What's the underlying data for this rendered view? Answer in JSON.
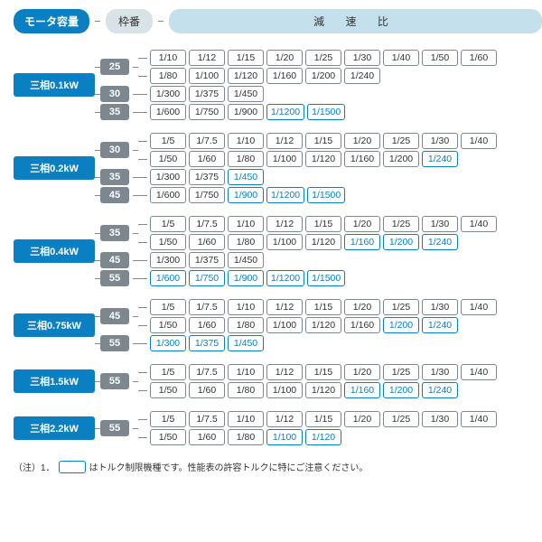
{
  "header": {
    "motor_label": "モータ容量",
    "frame_label": "枠番",
    "ratio_label": "減 速 比"
  },
  "colors": {
    "motor_bg": "#0a7fc2",
    "frame_bg": "#7d8790",
    "ratio_border": "#7d8790",
    "highlight_border": "#0a7fc2",
    "ratio_header_bg": "#c4e0ed",
    "frame_header_bg": "#d9e2e6"
  },
  "groups": [
    {
      "motor": "三相0.1kW",
      "frames": [
        {
          "frame": "25",
          "lines": [
            [
              [
                "1/10",
                0
              ],
              [
                "1/12",
                0
              ],
              [
                "1/15",
                0
              ],
              [
                "1/20",
                0
              ],
              [
                "1/25",
                0
              ],
              [
                "1/30",
                0
              ],
              [
                "1/40",
                0
              ],
              [
                "1/50",
                0
              ],
              [
                "1/60",
                0
              ]
            ],
            [
              [
                "1/80",
                0
              ],
              [
                "1/100",
                0
              ],
              [
                "1/120",
                0
              ],
              [
                "1/160",
                0
              ],
              [
                "1/200",
                0
              ],
              [
                "1/240",
                0
              ]
            ]
          ]
        },
        {
          "frame": "30",
          "lines": [
            [
              [
                "1/300",
                0
              ],
              [
                "1/375",
                0
              ],
              [
                "1/450",
                0
              ]
            ]
          ]
        },
        {
          "frame": "35",
          "lines": [
            [
              [
                "1/600",
                0
              ],
              [
                "1/750",
                0
              ],
              [
                "1/900",
                0
              ],
              [
                "1/1200",
                1
              ],
              [
                "1/1500",
                1
              ]
            ]
          ]
        }
      ]
    },
    {
      "motor": "三相0.2kW",
      "frames": [
        {
          "frame": "30",
          "lines": [
            [
              [
                "1/5",
                0
              ],
              [
                "1/7.5",
                0
              ],
              [
                "1/10",
                0
              ],
              [
                "1/12",
                0
              ],
              [
                "1/15",
                0
              ],
              [
                "1/20",
                0
              ],
              [
                "1/25",
                0
              ],
              [
                "1/30",
                0
              ],
              [
                "1/40",
                0
              ]
            ],
            [
              [
                "1/50",
                0
              ],
              [
                "1/60",
                0
              ],
              [
                "1/80",
                0
              ],
              [
                "1/100",
                0
              ],
              [
                "1/120",
                0
              ],
              [
                "1/160",
                0
              ],
              [
                "1/200",
                0
              ],
              [
                "1/240",
                1
              ]
            ]
          ]
        },
        {
          "frame": "35",
          "lines": [
            [
              [
                "1/300",
                0
              ],
              [
                "1/375",
                0
              ],
              [
                "1/450",
                1
              ]
            ]
          ]
        },
        {
          "frame": "45",
          "lines": [
            [
              [
                "1/600",
                0
              ],
              [
                "1/750",
                0
              ],
              [
                "1/900",
                1
              ],
              [
                "1/1200",
                1
              ],
              [
                "1/1500",
                1
              ]
            ]
          ]
        }
      ]
    },
    {
      "motor": "三相0.4kW",
      "frames": [
        {
          "frame": "35",
          "lines": [
            [
              [
                "1/5",
                0
              ],
              [
                "1/7.5",
                0
              ],
              [
                "1/10",
                0
              ],
              [
                "1/12",
                0
              ],
              [
                "1/15",
                0
              ],
              [
                "1/20",
                0
              ],
              [
                "1/25",
                0
              ],
              [
                "1/30",
                0
              ],
              [
                "1/40",
                0
              ]
            ],
            [
              [
                "1/50",
                0
              ],
              [
                "1/60",
                0
              ],
              [
                "1/80",
                0
              ],
              [
                "1/100",
                0
              ],
              [
                "1/120",
                0
              ],
              [
                "1/160",
                1
              ],
              [
                "1/200",
                1
              ],
              [
                "1/240",
                1
              ]
            ]
          ]
        },
        {
          "frame": "45",
          "lines": [
            [
              [
                "1/300",
                0
              ],
              [
                "1/375",
                0
              ],
              [
                "1/450",
                0
              ]
            ]
          ]
        },
        {
          "frame": "55",
          "lines": [
            [
              [
                "1/600",
                1
              ],
              [
                "1/750",
                1
              ],
              [
                "1/900",
                1
              ],
              [
                "1/1200",
                1
              ],
              [
                "1/1500",
                1
              ]
            ]
          ]
        }
      ]
    },
    {
      "motor": "三相0.75kW",
      "frames": [
        {
          "frame": "45",
          "lines": [
            [
              [
                "1/5",
                0
              ],
              [
                "1/7.5",
                0
              ],
              [
                "1/10",
                0
              ],
              [
                "1/12",
                0
              ],
              [
                "1/15",
                0
              ],
              [
                "1/20",
                0
              ],
              [
                "1/25",
                0
              ],
              [
                "1/30",
                0
              ],
              [
                "1/40",
                0
              ]
            ],
            [
              [
                "1/50",
                0
              ],
              [
                "1/60",
                0
              ],
              [
                "1/80",
                0
              ],
              [
                "1/100",
                0
              ],
              [
                "1/120",
                0
              ],
              [
                "1/160",
                0
              ],
              [
                "1/200",
                1
              ],
              [
                "1/240",
                1
              ]
            ]
          ]
        },
        {
          "frame": "55",
          "lines": [
            [
              [
                "1/300",
                1
              ],
              [
                "1/375",
                1
              ],
              [
                "1/450",
                1
              ]
            ]
          ]
        }
      ]
    },
    {
      "motor": "三相1.5kW",
      "frames": [
        {
          "frame": "55",
          "lines": [
            [
              [
                "1/5",
                0
              ],
              [
                "1/7.5",
                0
              ],
              [
                "1/10",
                0
              ],
              [
                "1/12",
                0
              ],
              [
                "1/15",
                0
              ],
              [
                "1/20",
                0
              ],
              [
                "1/25",
                0
              ],
              [
                "1/30",
                0
              ],
              [
                "1/40",
                0
              ]
            ],
            [
              [
                "1/50",
                0
              ],
              [
                "1/60",
                0
              ],
              [
                "1/80",
                0
              ],
              [
                "1/100",
                0
              ],
              [
                "1/120",
                0
              ],
              [
                "1/160",
                1
              ],
              [
                "1/200",
                1
              ],
              [
                "1/240",
                1
              ]
            ]
          ]
        }
      ]
    },
    {
      "motor": "三相2.2kW",
      "frames": [
        {
          "frame": "55",
          "lines": [
            [
              [
                "1/5",
                0
              ],
              [
                "1/7.5",
                0
              ],
              [
                "1/10",
                0
              ],
              [
                "1/12",
                0
              ],
              [
                "1/15",
                0
              ],
              [
                "1/20",
                0
              ],
              [
                "1/25",
                0
              ],
              [
                "1/30",
                0
              ],
              [
                "1/40",
                0
              ]
            ],
            [
              [
                "1/50",
                0
              ],
              [
                "1/60",
                0
              ],
              [
                "1/80",
                0
              ],
              [
                "1/100",
                1
              ],
              [
                "1/120",
                1
              ]
            ]
          ]
        }
      ]
    }
  ],
  "note_prefix": "（注）1．",
  "note_text": "はトルク制限機種です。性能表の許容トルクに特にご注意ください。"
}
